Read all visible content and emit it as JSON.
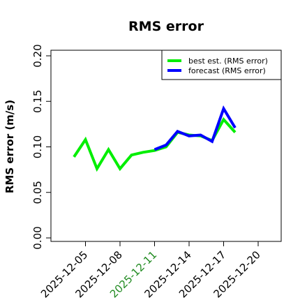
{
  "chart_data": {
    "type": "line",
    "title": "RMS error",
    "ylabel": "RMS error (m/s)",
    "xlabel": "",
    "ylim": [
      0.0,
      0.21
    ],
    "y_ticks": [
      "0.00",
      "0.05",
      "0.10",
      "0.15",
      "0.20"
    ],
    "x_ticks": [
      {
        "label": "2025-12-05",
        "color": "#000000"
      },
      {
        "label": "2025-12-08",
        "color": "#000000"
      },
      {
        "label": "2025-12-11",
        "color": "#228B22"
      },
      {
        "label": "2025-12-14",
        "color": "#000000"
      },
      {
        "label": "2025-12-17",
        "color": "#000000"
      },
      {
        "label": "2025-12-20",
        "color": "#000000"
      }
    ],
    "x_range": [
      "2025-12-02",
      "2025-12-22"
    ],
    "legend_position": "top-right",
    "series": [
      {
        "name": "best est. (RMS error)",
        "color": "#00ee00",
        "points": [
          [
            "2025-12-04",
            0.089
          ],
          [
            "2025-12-05",
            0.108
          ],
          [
            "2025-12-06",
            0.076
          ],
          [
            "2025-12-07",
            0.097
          ],
          [
            "2025-12-08",
            0.076
          ],
          [
            "2025-12-09",
            0.091
          ],
          [
            "2025-12-10",
            0.094
          ],
          [
            "2025-12-11",
            0.096
          ],
          [
            "2025-12-12",
            0.1
          ],
          [
            "2025-12-13",
            0.116
          ],
          [
            "2025-12-14",
            0.113
          ],
          [
            "2025-12-15",
            0.112
          ],
          [
            "2025-12-16",
            0.107
          ],
          [
            "2025-12-17",
            0.13
          ],
          [
            "2025-12-18",
            0.116
          ]
        ]
      },
      {
        "name": "forecast (RMS error)",
        "color": "#0000ff",
        "points": [
          [
            "2025-12-11",
            0.097
          ],
          [
            "2025-12-12",
            0.102
          ],
          [
            "2025-12-13",
            0.117
          ],
          [
            "2025-12-14",
            0.112
          ],
          [
            "2025-12-15",
            0.113
          ],
          [
            "2025-12-16",
            0.106
          ],
          [
            "2025-12-17",
            0.142
          ],
          [
            "2025-12-18",
            0.121
          ]
        ]
      }
    ]
  }
}
